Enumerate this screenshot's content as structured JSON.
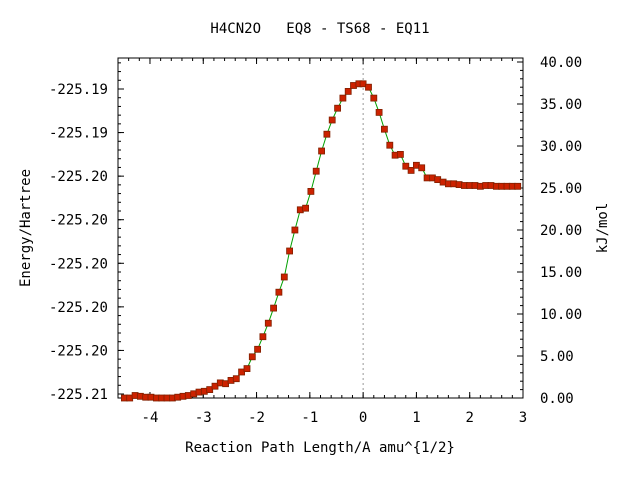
{
  "chart_data": {
    "type": "line",
    "title": "H4CN2O   EQ8 - TS68 - EQ11",
    "xlabel": "Reaction Path Length/A amu^{1/2}",
    "ylabel_left": "Energy/Hartree",
    "ylabel_right": "kJ/mol",
    "xlim": [
      -4.6,
      3.0
    ],
    "x_ticks": [
      "-4",
      "-3",
      "-2",
      "-1",
      "0",
      "1",
      "2",
      "3"
    ],
    "left_ticks": [
      "-225.19",
      "-225.19",
      "-225.20",
      "-225.20",
      "-225.20",
      "-225.20",
      "-225.20",
      "-225.21"
    ],
    "right_ylim": [
      0,
      40
    ],
    "right_ticks": [
      "40.00",
      "35.00",
      "30.00",
      "25.00",
      "20.00",
      "15.00",
      "10.00",
      "5.00",
      "0.00"
    ],
    "ts_marker_x": 0,
    "colors": {
      "line": "#00a000",
      "marker": "#cc2200",
      "marker_edge": "#802000",
      "ts_line": "#999999"
    },
    "series": [
      {
        "x": [
          -4.48,
          -4.38,
          -4.28,
          -4.18,
          -4.08,
          -3.98,
          -3.88,
          -3.78,
          -3.68,
          -3.58,
          -3.48,
          -3.38,
          -3.28,
          -3.18,
          -3.08,
          -2.98,
          -2.88,
          -2.78,
          -2.68,
          -2.58,
          -2.48,
          -2.38,
          -2.28,
          -2.18,
          -2.08,
          -1.98,
          -1.88,
          -1.78,
          -1.68,
          -1.58,
          -1.48,
          -1.38,
          -1.28,
          -1.18,
          -1.08,
          -0.98,
          -0.88,
          -0.78,
          -0.68,
          -0.58,
          -0.48,
          -0.38,
          -0.28,
          -0.18,
          -0.08,
          0.0,
          0.1,
          0.2,
          0.3,
          0.4,
          0.5,
          0.6,
          0.7,
          0.8,
          0.9,
          1.0,
          1.1,
          1.2,
          1.3,
          1.4,
          1.5,
          1.6,
          1.7,
          1.8,
          1.9,
          2.0,
          2.1,
          2.2,
          2.3,
          2.4,
          2.5,
          2.6,
          2.7,
          2.8,
          2.9
        ],
        "y": [
          0.0,
          0.0,
          0.3,
          0.2,
          0.1,
          0.1,
          0.0,
          0.0,
          0.0,
          0.0,
          0.1,
          0.2,
          0.3,
          0.5,
          0.7,
          0.8,
          1.0,
          1.4,
          1.8,
          1.7,
          2.1,
          2.3,
          3.1,
          3.5,
          4.9,
          5.8,
          7.3,
          8.9,
          10.7,
          12.6,
          14.4,
          17.5,
          20.0,
          22.4,
          22.6,
          24.6,
          27.0,
          29.4,
          31.4,
          33.1,
          34.5,
          35.7,
          36.5,
          37.2,
          37.4,
          37.4,
          37.0,
          35.7,
          34.0,
          32.0,
          30.1,
          28.9,
          29.0,
          27.6,
          27.1,
          27.7,
          27.4,
          26.2,
          26.2,
          26.0,
          25.7,
          25.5,
          25.5,
          25.4,
          25.3,
          25.3,
          25.3,
          25.2,
          25.3,
          25.3,
          25.2,
          25.2,
          25.2,
          25.2,
          25.2
        ]
      }
    ]
  }
}
